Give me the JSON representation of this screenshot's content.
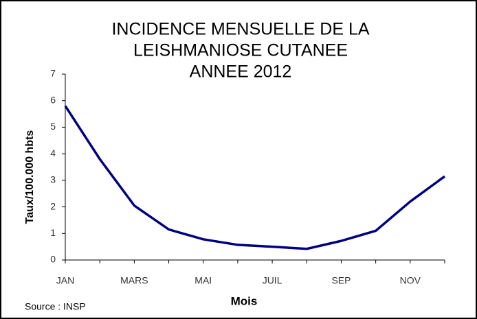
{
  "chart_data": {
    "type": "line",
    "title": [
      "INCIDENCE  MENSUELLE  DE  LA",
      "LEISHMANIOSE  CUTANEE",
      "ANNEE  2012"
    ],
    "x_label": "Mois",
    "y_label": "Taux/100.000 hbts",
    "annotation": "Source : INSP",
    "categories": [
      "JAN",
      null,
      "MARS",
      null,
      "MAI",
      null,
      "JUIL",
      null,
      "SEP",
      null,
      "NOV",
      null
    ],
    "values": [
      5.8,
      3.8,
      2.05,
      1.15,
      0.78,
      0.57,
      0.5,
      0.42,
      0.72,
      1.1,
      2.2,
      3.15
    ],
    "color": "#000080",
    "ylim": [
      0,
      7
    ],
    "yticks": [
      0,
      1,
      2,
      3,
      4,
      5,
      6,
      7
    ],
    "grid": false
  }
}
